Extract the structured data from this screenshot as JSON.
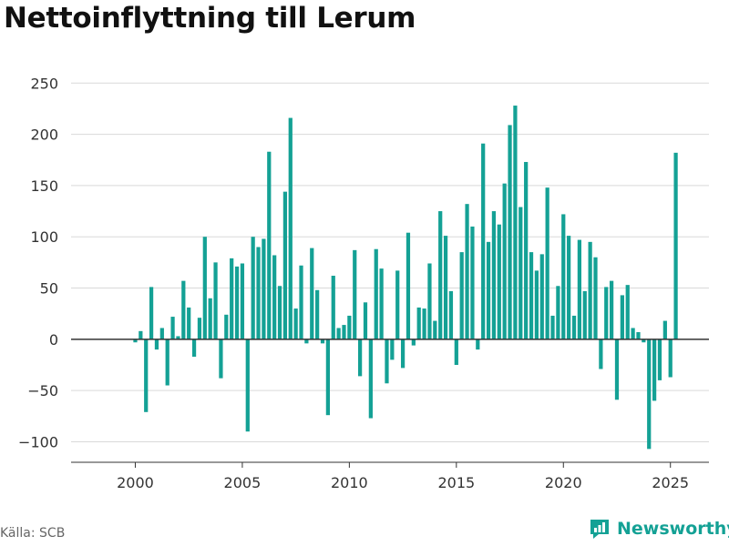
{
  "title": "Nettoinflyttning till Lerum",
  "source": "Källa: SCB",
  "brand": {
    "name": "Newsworthy",
    "icon": "newsworthy-logo-icon",
    "color": "#14a195"
  },
  "colors": {
    "bar": "#14a195",
    "grid": "#d9d9d9",
    "zero": "#333333"
  },
  "chart_data": {
    "type": "bar",
    "title": "Nettoinflyttning till Lerum",
    "xlabel": "",
    "ylabel": "",
    "ylim": [
      -120,
      260
    ],
    "xlim": [
      1997.0,
      2026.8
    ],
    "y_ticks": [
      -100,
      -50,
      0,
      50,
      100,
      150,
      200,
      250
    ],
    "y_tick_labels": [
      "−100",
      "−50",
      "0",
      "50",
      "100",
      "150",
      "200",
      "250"
    ],
    "x_ticks": [
      2000,
      2005,
      2010,
      2015,
      2020,
      2025
    ],
    "x_tick_labels": [
      "2000",
      "2005",
      "2010",
      "2015",
      "2020",
      "2025"
    ],
    "grid": true,
    "legend": "none",
    "frequency": "quarterly",
    "start": "2000 Q1",
    "end": "2025 Q2",
    "values": [
      -3,
      8,
      -71,
      51,
      -10,
      11,
      -45,
      22,
      3,
      57,
      31,
      -17,
      21,
      100,
      40,
      75,
      -38,
      24,
      79,
      71,
      74,
      -90,
      100,
      90,
      98,
      183,
      82,
      52,
      144,
      216,
      30,
      72,
      -4,
      89,
      48,
      -4,
      -74,
      62,
      11,
      14,
      23,
      87,
      -36,
      36,
      -77,
      88,
      69,
      -43,
      -20,
      67,
      -28,
      104,
      -6,
      31,
      30,
      74,
      18,
      125,
      101,
      47,
      -25,
      85,
      132,
      110,
      -10,
      191,
      95,
      125,
      112,
      152,
      209,
      228,
      129,
      173,
      85,
      67,
      83,
      148,
      23,
      52,
      122,
      101,
      23,
      97,
      47,
      95,
      80,
      -29,
      51,
      57,
      -59,
      43,
      53,
      11,
      7,
      -3,
      -107,
      -60,
      -40,
      18,
      -37,
      182
    ]
  }
}
